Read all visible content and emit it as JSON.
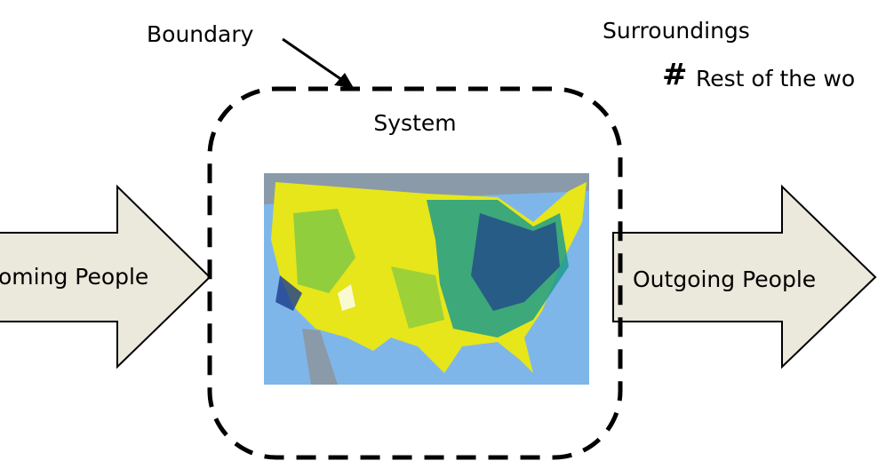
{
  "boundary_label": "Boundary",
  "surroundings": {
    "title": "Surroundings",
    "symbol": "#",
    "note": "Rest of the wo"
  },
  "system_label": "System",
  "incoming": "oming People",
  "outgoing": "Outgoing People"
}
